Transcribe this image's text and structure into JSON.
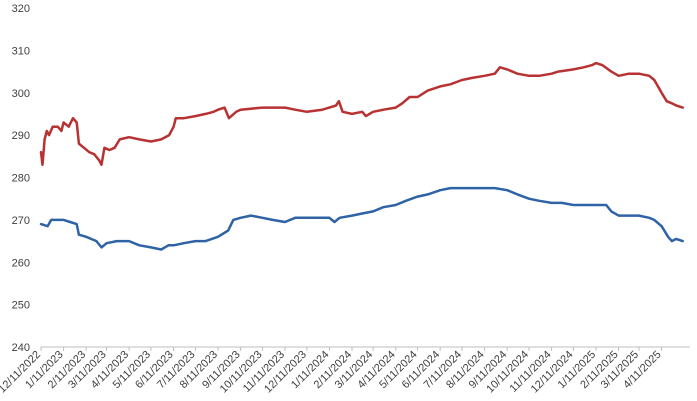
{
  "chart_data": {
    "type": "line",
    "title": "",
    "xlabel": "",
    "ylabel": "",
    "ylim": [
      240,
      320
    ],
    "yticks": [
      240,
      250,
      260,
      270,
      280,
      290,
      300,
      310,
      320
    ],
    "xlim": [
      "2022-12-11",
      "2025-05-20"
    ],
    "xtick_labels": [
      "12/11/2022",
      "1/11/2023",
      "2/11/2023",
      "3/11/2023",
      "4/11/2023",
      "5/11/2023",
      "6/11/2023",
      "7/11/2023",
      "8/11/2023",
      "9/11/2023",
      "10/11/2023",
      "11/11/2023",
      "12/11/2023",
      "1/11/2024",
      "2/11/2024",
      "3/11/2024",
      "4/11/2024",
      "5/11/2024",
      "6/11/2024",
      "7/11/2024",
      "8/11/2024",
      "9/11/2024",
      "10/11/2024",
      "11/11/2024",
      "12/11/2024",
      "1/11/2025",
      "2/11/2025",
      "3/11/2025",
      "4/11/2025"
    ],
    "grid": false,
    "legend": "none",
    "series": [
      {
        "color": "#b83232",
        "points": [
          [
            "2022-12-11",
            286
          ],
          [
            "2022-12-13",
            283
          ],
          [
            "2022-12-16",
            289
          ],
          [
            "2022-12-19",
            291
          ],
          [
            "2022-12-22",
            290
          ],
          [
            "2022-12-27",
            292
          ],
          [
            "2023-01-03",
            292
          ],
          [
            "2023-01-08",
            291
          ],
          [
            "2023-01-11",
            293
          ],
          [
            "2023-01-18",
            292
          ],
          [
            "2023-01-24",
            294
          ],
          [
            "2023-01-29",
            293
          ],
          [
            "2023-02-01",
            288
          ],
          [
            "2023-02-08",
            287
          ],
          [
            "2023-02-15",
            286
          ],
          [
            "2023-02-22",
            285.5
          ],
          [
            "2023-03-01",
            284
          ],
          [
            "2023-03-04",
            283
          ],
          [
            "2023-03-08",
            287
          ],
          [
            "2023-03-15",
            286.5
          ],
          [
            "2023-03-22",
            287
          ],
          [
            "2023-03-29",
            289
          ],
          [
            "2023-04-11",
            289.5
          ],
          [
            "2023-04-25",
            289
          ],
          [
            "2023-05-11",
            288.5
          ],
          [
            "2023-05-25",
            289
          ],
          [
            "2023-06-05",
            290
          ],
          [
            "2023-06-11",
            292
          ],
          [
            "2023-06-14",
            294
          ],
          [
            "2023-06-25",
            294
          ],
          [
            "2023-07-11",
            294.5
          ],
          [
            "2023-07-25",
            295
          ],
          [
            "2023-08-05",
            295.5
          ],
          [
            "2023-08-11",
            296
          ],
          [
            "2023-08-20",
            296.5
          ],
          [
            "2023-08-26",
            294
          ],
          [
            "2023-09-05",
            295.5
          ],
          [
            "2023-09-11",
            296
          ],
          [
            "2023-10-11",
            296.5
          ],
          [
            "2023-11-11",
            296.5
          ],
          [
            "2023-11-25",
            296
          ],
          [
            "2023-12-11",
            295.5
          ],
          [
            "2024-01-01",
            296
          ],
          [
            "2024-01-11",
            296.5
          ],
          [
            "2024-01-20",
            297
          ],
          [
            "2024-01-24",
            298
          ],
          [
            "2024-01-29",
            295.5
          ],
          [
            "2024-02-11",
            295
          ],
          [
            "2024-02-25",
            295.5
          ],
          [
            "2024-03-01",
            294.5
          ],
          [
            "2024-03-11",
            295.5
          ],
          [
            "2024-03-25",
            296
          ],
          [
            "2024-04-11",
            296.5
          ],
          [
            "2024-04-20",
            297.5
          ],
          [
            "2024-04-30",
            299
          ],
          [
            "2024-05-11",
            299
          ],
          [
            "2024-05-25",
            300.5
          ],
          [
            "2024-06-11",
            301.5
          ],
          [
            "2024-06-25",
            302
          ],
          [
            "2024-07-11",
            303
          ],
          [
            "2024-07-25",
            303.5
          ],
          [
            "2024-08-11",
            304
          ],
          [
            "2024-08-25",
            304.5
          ],
          [
            "2024-09-01",
            306
          ],
          [
            "2024-09-11",
            305.5
          ],
          [
            "2024-09-25",
            304.5
          ],
          [
            "2024-10-11",
            304
          ],
          [
            "2024-10-25",
            304
          ],
          [
            "2024-11-11",
            304.5
          ],
          [
            "2024-11-20",
            305
          ],
          [
            "2024-12-11",
            305.5
          ],
          [
            "2024-12-25",
            306
          ],
          [
            "2025-01-05",
            306.5
          ],
          [
            "2025-01-11",
            307
          ],
          [
            "2025-01-20",
            306.5
          ],
          [
            "2025-02-01",
            305
          ],
          [
            "2025-02-11",
            304
          ],
          [
            "2025-02-25",
            304.5
          ],
          [
            "2025-03-11",
            304.5
          ],
          [
            "2025-03-25",
            304
          ],
          [
            "2025-04-01",
            303
          ],
          [
            "2025-04-11",
            300
          ],
          [
            "2025-04-18",
            298
          ],
          [
            "2025-04-25",
            297.5
          ],
          [
            "2025-05-01",
            297
          ],
          [
            "2025-05-10",
            296.5
          ]
        ]
      },
      {
        "color": "#2e63a6",
        "points": [
          [
            "2022-12-11",
            269
          ],
          [
            "2022-12-20",
            268.5
          ],
          [
            "2022-12-25",
            270
          ],
          [
            "2023-01-11",
            270
          ],
          [
            "2023-01-20",
            269.5
          ],
          [
            "2023-01-29",
            269
          ],
          [
            "2023-02-01",
            266.5
          ],
          [
            "2023-02-11",
            266
          ],
          [
            "2023-02-25",
            265
          ],
          [
            "2023-03-04",
            263.5
          ],
          [
            "2023-03-11",
            264.5
          ],
          [
            "2023-03-25",
            265
          ],
          [
            "2023-04-11",
            265
          ],
          [
            "2023-04-25",
            264
          ],
          [
            "2023-05-11",
            263.5
          ],
          [
            "2023-05-25",
            263
          ],
          [
            "2023-06-04",
            264
          ],
          [
            "2023-06-11",
            264
          ],
          [
            "2023-06-25",
            264.5
          ],
          [
            "2023-07-11",
            265
          ],
          [
            "2023-07-25",
            265
          ],
          [
            "2023-08-11",
            266
          ],
          [
            "2023-08-25",
            267.5
          ],
          [
            "2023-09-01",
            270
          ],
          [
            "2023-09-11",
            270.5
          ],
          [
            "2023-09-25",
            271
          ],
          [
            "2023-10-11",
            270.5
          ],
          [
            "2023-10-25",
            270
          ],
          [
            "2023-11-11",
            269.5
          ],
          [
            "2023-11-25",
            270.5
          ],
          [
            "2023-12-11",
            270.5
          ],
          [
            "2023-12-25",
            270.5
          ],
          [
            "2024-01-11",
            270.5
          ],
          [
            "2024-01-18",
            269.5
          ],
          [
            "2024-01-25",
            270.5
          ],
          [
            "2024-02-11",
            271
          ],
          [
            "2024-02-25",
            271.5
          ],
          [
            "2024-03-11",
            272
          ],
          [
            "2024-03-25",
            273
          ],
          [
            "2024-04-11",
            273.5
          ],
          [
            "2024-04-25",
            274.5
          ],
          [
            "2024-05-11",
            275.5
          ],
          [
            "2024-05-25",
            276
          ],
          [
            "2024-06-11",
            277
          ],
          [
            "2024-06-25",
            277.5
          ],
          [
            "2024-07-11",
            277.5
          ],
          [
            "2024-07-25",
            277.5
          ],
          [
            "2024-08-11",
            277.5
          ],
          [
            "2024-08-25",
            277.5
          ],
          [
            "2024-09-11",
            277
          ],
          [
            "2024-09-25",
            276
          ],
          [
            "2024-10-11",
            275
          ],
          [
            "2024-10-25",
            274.5
          ],
          [
            "2024-11-11",
            274
          ],
          [
            "2024-11-25",
            274
          ],
          [
            "2024-12-11",
            273.5
          ],
          [
            "2025-01-11",
            273.5
          ],
          [
            "2025-01-25",
            273.5
          ],
          [
            "2025-02-01",
            272
          ],
          [
            "2025-02-11",
            271
          ],
          [
            "2025-02-25",
            271
          ],
          [
            "2025-03-11",
            271
          ],
          [
            "2025-03-25",
            270.5
          ],
          [
            "2025-04-01",
            270
          ],
          [
            "2025-04-11",
            268.5
          ],
          [
            "2025-04-20",
            266
          ],
          [
            "2025-04-25",
            265
          ],
          [
            "2025-05-01",
            265.5
          ],
          [
            "2025-05-10",
            265
          ]
        ]
      }
    ]
  }
}
